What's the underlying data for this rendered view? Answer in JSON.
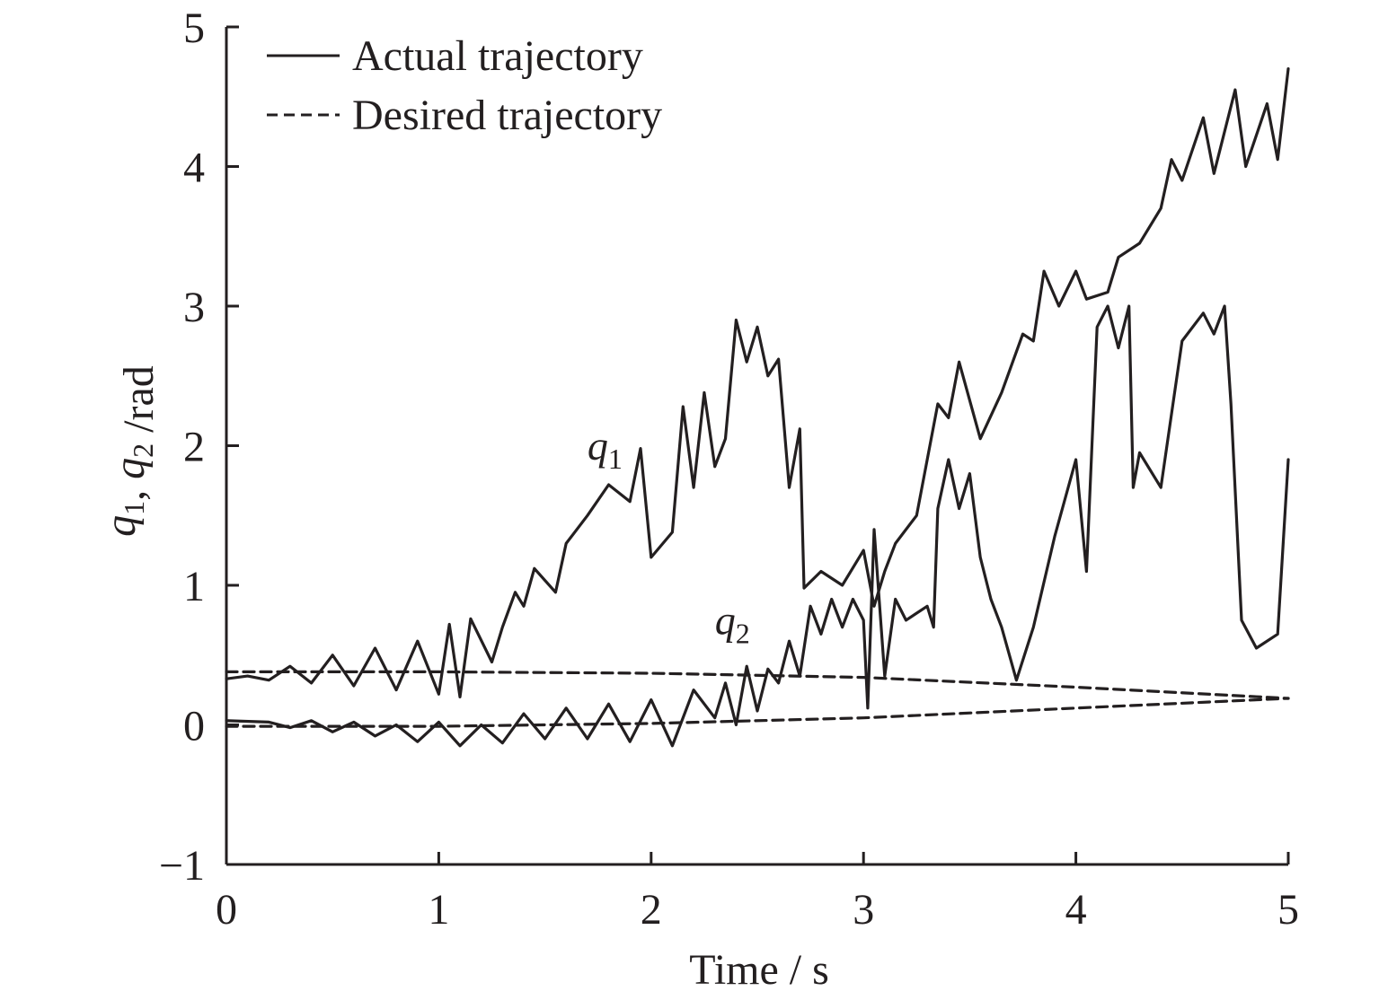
{
  "chart_data": {
    "type": "line",
    "title": "",
    "xlabel": "Time / s",
    "ylabel": "q1, q2 /rad",
    "xlim": [
      0,
      5
    ],
    "ylim": [
      -1,
      5
    ],
    "x_ticks": [
      "0",
      "1",
      "2",
      "3",
      "4",
      "5"
    ],
    "y_ticks": [
      "−1",
      "0",
      "1",
      "2",
      "3",
      "4",
      "5"
    ],
    "grid": false,
    "legend": {
      "placement": "top-left",
      "entries": [
        {
          "label": "Actual trajectory",
          "style": "solid"
        },
        {
          "label": "Desired trajectory",
          "style": "dashed"
        }
      ]
    },
    "annotations": [
      {
        "text": "q1",
        "x": 1.7,
        "y": 1.9
      },
      {
        "text": "q2",
        "x": 2.3,
        "y": 0.65
      }
    ],
    "series": [
      {
        "label": "q1",
        "style": "solid",
        "points": [
          [
            0.0,
            0.33
          ],
          [
            0.1,
            0.35
          ],
          [
            0.2,
            0.32
          ],
          [
            0.3,
            0.42
          ],
          [
            0.4,
            0.3
          ],
          [
            0.5,
            0.5
          ],
          [
            0.6,
            0.28
          ],
          [
            0.7,
            0.55
          ],
          [
            0.8,
            0.25
          ],
          [
            0.9,
            0.6
          ],
          [
            1.0,
            0.22
          ],
          [
            1.05,
            0.72
          ],
          [
            1.1,
            0.2
          ],
          [
            1.15,
            0.76
          ],
          [
            1.25,
            0.45
          ],
          [
            1.3,
            0.7
          ],
          [
            1.36,
            0.95
          ],
          [
            1.4,
            0.85
          ],
          [
            1.45,
            1.12
          ],
          [
            1.55,
            0.95
          ],
          [
            1.6,
            1.3
          ],
          [
            1.7,
            1.5
          ],
          [
            1.8,
            1.72
          ],
          [
            1.9,
            1.6
          ],
          [
            1.95,
            1.98
          ],
          [
            2.0,
            1.2
          ],
          [
            2.1,
            1.38
          ],
          [
            2.15,
            2.28
          ],
          [
            2.2,
            1.7
          ],
          [
            2.25,
            2.38
          ],
          [
            2.3,
            1.85
          ],
          [
            2.35,
            2.05
          ],
          [
            2.4,
            2.9
          ],
          [
            2.45,
            2.6
          ],
          [
            2.5,
            2.85
          ],
          [
            2.55,
            2.5
          ],
          [
            2.6,
            2.62
          ],
          [
            2.65,
            1.7
          ],
          [
            2.7,
            2.12
          ],
          [
            2.72,
            0.98
          ],
          [
            2.8,
            1.1
          ],
          [
            2.9,
            1.0
          ],
          [
            3.0,
            1.25
          ],
          [
            3.05,
            0.85
          ],
          [
            3.1,
            1.1
          ],
          [
            3.15,
            1.3
          ],
          [
            3.25,
            1.5
          ],
          [
            3.35,
            2.3
          ],
          [
            3.4,
            2.2
          ],
          [
            3.45,
            2.6
          ],
          [
            3.55,
            2.05
          ],
          [
            3.65,
            2.38
          ],
          [
            3.75,
            2.8
          ],
          [
            3.8,
            2.75
          ],
          [
            3.85,
            3.25
          ],
          [
            3.92,
            3.0
          ],
          [
            4.0,
            3.25
          ],
          [
            4.05,
            3.05
          ],
          [
            4.15,
            3.1
          ],
          [
            4.2,
            3.35
          ],
          [
            4.3,
            3.45
          ],
          [
            4.4,
            3.7
          ],
          [
            4.45,
            4.05
          ],
          [
            4.5,
            3.9
          ],
          [
            4.6,
            4.35
          ],
          [
            4.65,
            3.95
          ],
          [
            4.75,
            4.55
          ],
          [
            4.8,
            4.0
          ],
          [
            4.9,
            4.45
          ],
          [
            4.95,
            4.05
          ],
          [
            5.0,
            4.7
          ]
        ]
      },
      {
        "label": "q2",
        "style": "solid",
        "points": [
          [
            0.0,
            0.03
          ],
          [
            0.2,
            0.02
          ],
          [
            0.3,
            -0.02
          ],
          [
            0.4,
            0.03
          ],
          [
            0.5,
            -0.05
          ],
          [
            0.6,
            0.02
          ],
          [
            0.7,
            -0.08
          ],
          [
            0.8,
            0.0
          ],
          [
            0.9,
            -0.12
          ],
          [
            1.0,
            0.02
          ],
          [
            1.1,
            -0.15
          ],
          [
            1.2,
            0.0
          ],
          [
            1.3,
            -0.13
          ],
          [
            1.4,
            0.08
          ],
          [
            1.5,
            -0.1
          ],
          [
            1.6,
            0.12
          ],
          [
            1.7,
            -0.1
          ],
          [
            1.8,
            0.15
          ],
          [
            1.9,
            -0.12
          ],
          [
            2.0,
            0.18
          ],
          [
            2.1,
            -0.15
          ],
          [
            2.2,
            0.25
          ],
          [
            2.3,
            0.05
          ],
          [
            2.35,
            0.3
          ],
          [
            2.4,
            0.0
          ],
          [
            2.45,
            0.42
          ],
          [
            2.5,
            0.1
          ],
          [
            2.55,
            0.4
          ],
          [
            2.6,
            0.3
          ],
          [
            2.65,
            0.6
          ],
          [
            2.7,
            0.35
          ],
          [
            2.75,
            0.85
          ],
          [
            2.8,
            0.65
          ],
          [
            2.85,
            0.9
          ],
          [
            2.9,
            0.7
          ],
          [
            2.95,
            0.9
          ],
          [
            3.0,
            0.75
          ],
          [
            3.02,
            0.12
          ],
          [
            3.05,
            1.4
          ],
          [
            3.1,
            0.35
          ],
          [
            3.15,
            0.9
          ],
          [
            3.2,
            0.75
          ],
          [
            3.3,
            0.85
          ],
          [
            3.33,
            0.7
          ],
          [
            3.35,
            1.55
          ],
          [
            3.4,
            1.9
          ],
          [
            3.45,
            1.55
          ],
          [
            3.5,
            1.8
          ],
          [
            3.55,
            1.2
          ],
          [
            3.6,
            0.9
          ],
          [
            3.65,
            0.7
          ],
          [
            3.72,
            0.32
          ],
          [
            3.8,
            0.7
          ],
          [
            3.9,
            1.35
          ],
          [
            4.0,
            1.9
          ],
          [
            4.05,
            1.1
          ],
          [
            4.1,
            2.85
          ],
          [
            4.15,
            3.0
          ],
          [
            4.2,
            2.7
          ],
          [
            4.25,
            3.0
          ],
          [
            4.27,
            1.7
          ],
          [
            4.3,
            1.95
          ],
          [
            4.4,
            1.7
          ],
          [
            4.5,
            2.75
          ],
          [
            4.6,
            2.95
          ],
          [
            4.65,
            2.8
          ],
          [
            4.7,
            3.0
          ],
          [
            4.73,
            2.3
          ],
          [
            4.78,
            0.75
          ],
          [
            4.85,
            0.55
          ],
          [
            4.95,
            0.65
          ],
          [
            5.0,
            1.9
          ]
        ]
      },
      {
        "label": "q1 desired",
        "style": "dashed",
        "points": [
          [
            0.0,
            0.38
          ],
          [
            1.0,
            0.38
          ],
          [
            2.0,
            0.37
          ],
          [
            3.0,
            0.34
          ],
          [
            4.0,
            0.27
          ],
          [
            5.0,
            0.19
          ]
        ]
      },
      {
        "label": "q2 desired",
        "style": "dashed",
        "points": [
          [
            0.0,
            -0.01
          ],
          [
            1.0,
            -0.01
          ],
          [
            2.0,
            0.01
          ],
          [
            3.0,
            0.05
          ],
          [
            4.0,
            0.12
          ],
          [
            5.0,
            0.19
          ]
        ]
      }
    ]
  }
}
